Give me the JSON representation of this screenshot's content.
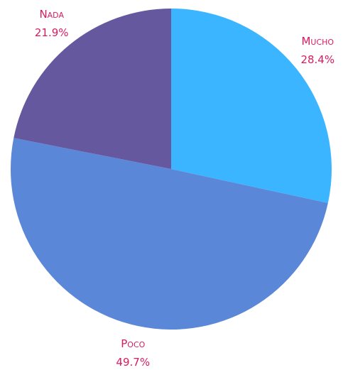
{
  "chart_data": {
    "type": "pie",
    "categories": [
      "Mucho",
      "Poco",
      "Nada"
    ],
    "values": [
      28.4,
      49.7,
      21.9
    ],
    "value_labels": [
      "28.4%",
      "49.7%",
      "21.9%"
    ],
    "colors": [
      "#3bb5ff",
      "#5b87d8",
      "#65589f"
    ]
  }
}
